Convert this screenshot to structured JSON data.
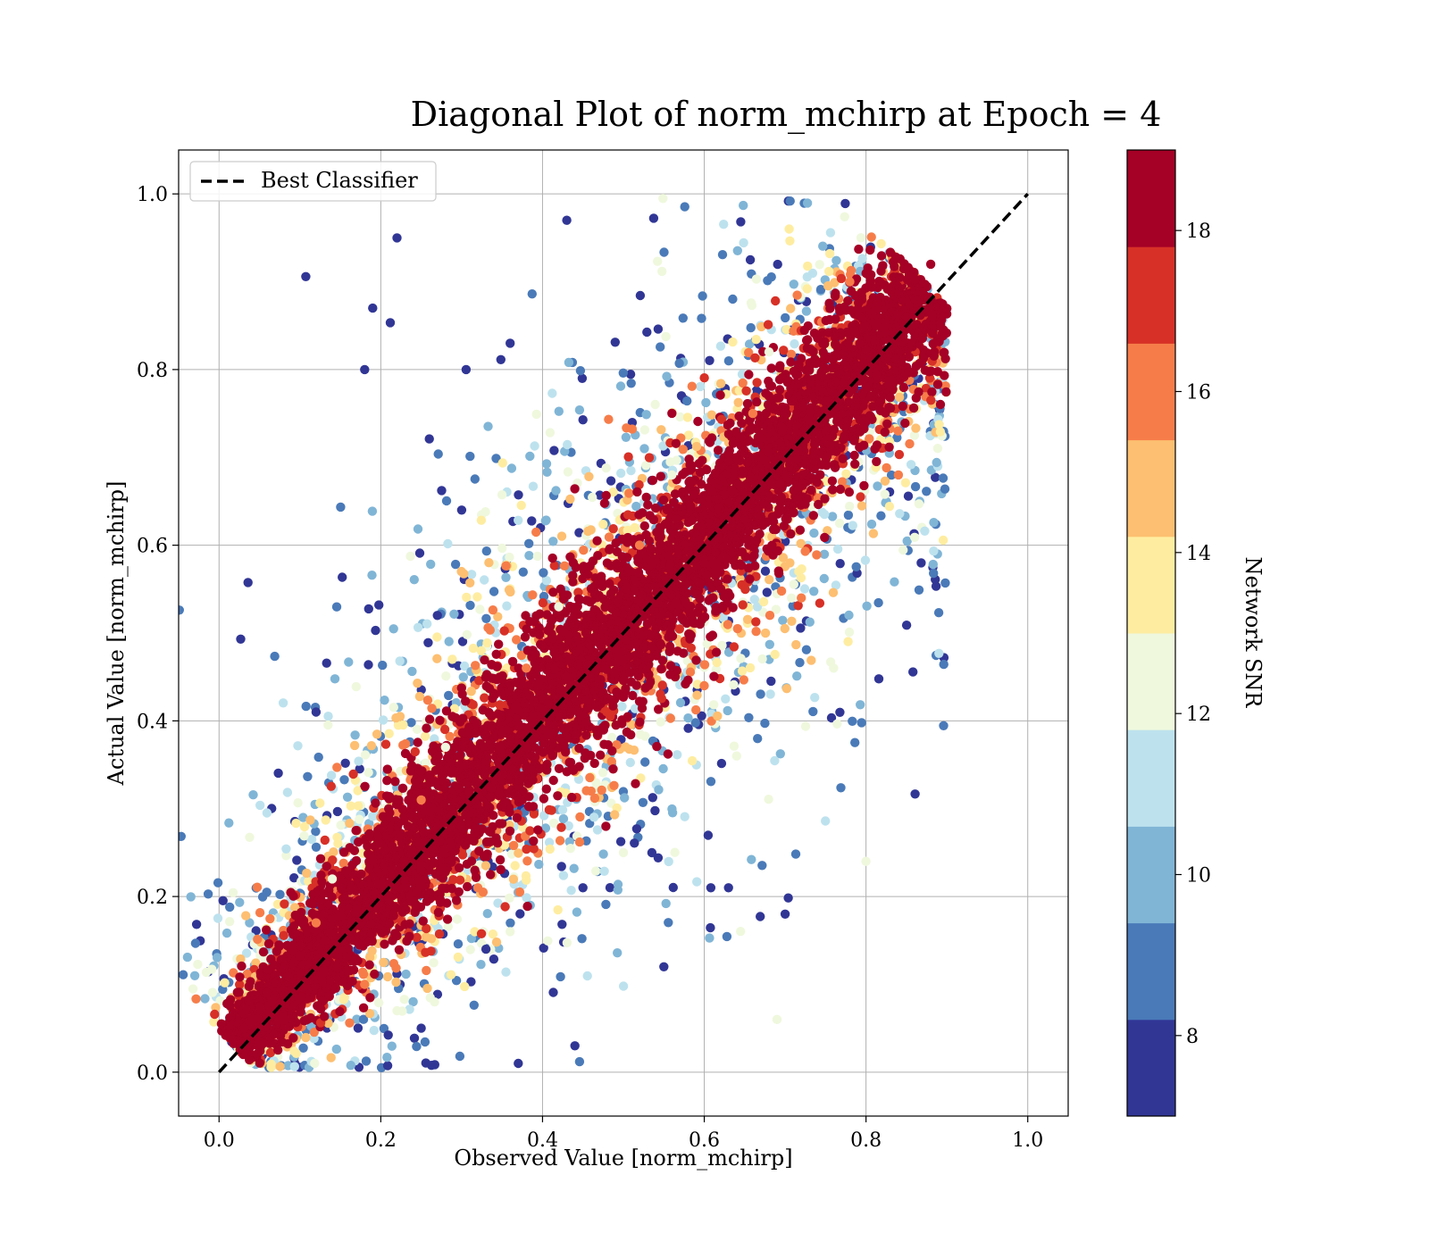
{
  "chart_data": {
    "type": "scatter",
    "title": "Diagonal Plot of norm_mchirp at Epoch = 4",
    "xlabel": "Observed Value [norm_mchirp]",
    "ylabel": "Actual Value [norm_mchirp]",
    "xlim": [
      -0.05,
      1.05
    ],
    "ylim": [
      -0.05,
      1.05
    ],
    "xticks": [
      "0.0",
      "0.2",
      "0.4",
      "0.6",
      "0.8",
      "1.0"
    ],
    "yticks": [
      "0.0",
      "0.2",
      "0.4",
      "0.6",
      "0.8",
      "1.0"
    ],
    "xtick_values": [
      0.0,
      0.2,
      0.4,
      0.6,
      0.8,
      1.0
    ],
    "ytick_values": [
      0.0,
      0.2,
      0.4,
      0.6,
      0.8,
      1.0
    ],
    "grid": true,
    "legend": {
      "position": "upper-left",
      "entries": [
        "Best Classifier"
      ]
    },
    "reference_line": {
      "name": "Best Classifier",
      "x": [
        0.0,
        1.0
      ],
      "y": [
        0.0,
        1.0
      ],
      "style": "dashed",
      "color": "#000000"
    },
    "colorbar": {
      "label": "Network SNR",
      "range": [
        7,
        19
      ],
      "ticks": [
        "8",
        "10",
        "12",
        "14",
        "16",
        "18"
      ],
      "tick_values": [
        8,
        10,
        12,
        14,
        16,
        18
      ],
      "colors": [
        "#313695",
        "#4a7ab8",
        "#80b5d6",
        "#bde2ee",
        "#eff8dd",
        "#feeda1",
        "#fdbf71",
        "#f67d4a",
        "#d73027",
        "#a50026"
      ]
    },
    "series": [
      {
        "snr_level": 19,
        "points": [
          [
            0.03,
            0.02
          ],
          [
            0.06,
            0.07
          ],
          [
            0.1,
            0.1
          ],
          [
            0.15,
            0.14
          ],
          [
            0.2,
            0.19
          ],
          [
            0.25,
            0.23
          ],
          [
            0.3,
            0.28
          ],
          [
            0.35,
            0.34
          ],
          [
            0.4,
            0.39
          ],
          [
            0.45,
            0.44
          ],
          [
            0.5,
            0.48
          ],
          [
            0.55,
            0.53
          ],
          [
            0.6,
            0.58
          ],
          [
            0.65,
            0.63
          ],
          [
            0.7,
            0.68
          ],
          [
            0.75,
            0.73
          ],
          [
            0.8,
            0.78
          ],
          [
            0.85,
            0.86
          ],
          [
            0.88,
            0.92
          ]
        ]
      },
      {
        "snr_level": 16,
        "points": [
          [
            0.12,
            0.17
          ],
          [
            0.25,
            0.31
          ],
          [
            0.38,
            0.46
          ],
          [
            0.52,
            0.6
          ],
          [
            0.66,
            0.75
          ],
          [
            0.78,
            0.9
          ],
          [
            0.18,
            0.1
          ],
          [
            0.32,
            0.21
          ],
          [
            0.46,
            0.32
          ],
          [
            0.6,
            0.44
          ],
          [
            0.72,
            0.54
          ],
          [
            0.84,
            0.68
          ]
        ]
      },
      {
        "snr_level": 12,
        "points": [
          [
            0.14,
            0.22
          ],
          [
            0.28,
            0.37
          ],
          [
            0.42,
            0.53
          ],
          [
            0.56,
            0.68
          ],
          [
            0.68,
            0.82
          ],
          [
            0.22,
            0.07
          ],
          [
            0.36,
            0.16
          ],
          [
            0.5,
            0.25
          ],
          [
            0.64,
            0.36
          ],
          [
            0.76,
            0.46
          ],
          [
            0.69,
            0.06
          ],
          [
            0.8,
            0.24
          ]
        ]
      },
      {
        "snr_level": 8,
        "points": [
          [
            0.18,
            0.8
          ],
          [
            0.19,
            0.87
          ],
          [
            0.22,
            0.95
          ],
          [
            0.3,
            0.64
          ],
          [
            0.36,
            0.83
          ],
          [
            0.43,
            0.97
          ],
          [
            0.12,
            0.41
          ],
          [
            0.27,
            0.52
          ],
          [
            0.25,
            0.05
          ],
          [
            0.33,
            0.14
          ],
          [
            0.45,
            0.21
          ],
          [
            0.55,
            0.12
          ],
          [
            0.63,
            0.21
          ],
          [
            0.7,
            0.18
          ],
          [
            0.37,
            0.01
          ],
          [
            0.44,
            0.03
          ]
        ]
      }
    ]
  }
}
